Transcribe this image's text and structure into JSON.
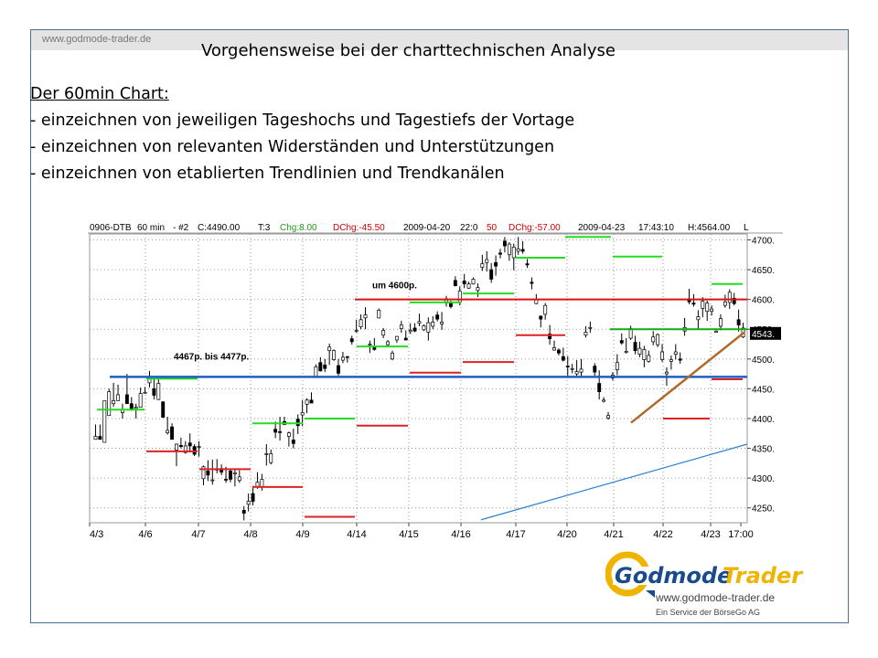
{
  "site_url": "www.godmode-trader.de",
  "slide_title": "Vorgehensweise bei der charttechnischen Analyse",
  "chart_heading": "Der 60min Chart:",
  "bullets": [
    "- einzeichnen von jeweiligen Tageshochs und Tagestiefs der Vortage",
    "- einzeichnen von relevanten Widerständen und Unterstützungen",
    "- einzeichnen von etablierten Trendlinien und  Trendkanälen"
  ],
  "chart_data": {
    "type": "candlestick",
    "header": {
      "symbol": "0906-DTB",
      "interval": "60 min",
      "num": "- #2",
      "close": "C:4490.00",
      "t": "T:3",
      "chg": "Chg:8.00",
      "dchg": "DChg:-45.50",
      "date1": "2009-04-20",
      "time1": "22:0",
      "dchg2_prefix": "50",
      "dchg2": "DChg:-57.00",
      "date2": "2009-04-23",
      "time2": "17:43:10",
      "high": "H:4564.00",
      "tail": "L"
    },
    "y_ticks": [
      "4700.",
      "4650.",
      "4600.",
      "4550.",
      "4500.",
      "4450.",
      "4400.",
      "4350.",
      "4300.",
      "4250."
    ],
    "y_range": [
      4225,
      4710
    ],
    "x_ticks": [
      "4/3",
      "4/6",
      "4/7",
      "4/8",
      "4/9",
      "4/14",
      "4/15",
      "4/16",
      "4/17",
      "4/20",
      "4/21",
      "4/22",
      "4/23",
      "17:00"
    ],
    "last_price_label": "4543.",
    "annotations": [
      {
        "text": "um 4600p.",
        "price": 4600
      },
      {
        "text": "4467p. bis 4477p.",
        "price": 4472
      }
    ],
    "candles": [
      [
        4365,
        4365,
        4390,
        4370
      ],
      [
        4370,
        4370,
        4390,
        4365
      ],
      [
        4360,
        4365,
        4400,
        4430
      ],
      [
        4405,
        4425,
        4450,
        4445
      ],
      [
        4425,
        4420,
        4460,
        4430
      ],
      [
        4430,
        4435,
        4457,
        4440
      ],
      [
        4410,
        4400,
        4425,
        4415
      ],
      [
        4440,
        4440,
        4475,
        4425
      ],
      [
        4425,
        4413,
        4436,
        4415
      ],
      [
        4417,
        4400,
        4425,
        4419
      ],
      [
        4419,
        4419,
        4452,
        4442
      ],
      [
        4443,
        4443,
        4453,
        4444
      ],
      [
        4460,
        4452,
        4480,
        4468
      ],
      [
        4450,
        4432,
        4470,
        4439
      ],
      [
        4432,
        4431,
        4469,
        4459
      ],
      [
        4428,
        4402,
        4429,
        4402
      ],
      [
        4376,
        4373,
        4403,
        4380
      ],
      [
        4386,
        4365,
        4392,
        4365
      ],
      [
        4347,
        4320,
        4358,
        4357
      ],
      [
        4355,
        4350,
        4368,
        4353
      ],
      [
        4343,
        4341,
        4362,
        4354
      ],
      [
        4359,
        4343,
        4375,
        4354
      ],
      [
        4353,
        4337,
        4357,
        4340
      ],
      [
        4352,
        4336,
        4362,
        4353
      ],
      [
        4299,
        4288,
        4321,
        4319
      ],
      [
        4312,
        4295,
        4330,
        4305
      ],
      [
        4297,
        4289,
        4331,
        4297
      ],
      [
        4314,
        4308,
        4332,
        4315
      ],
      [
        4316,
        4305,
        4323,
        4310
      ],
      [
        4298,
        4292,
        4319,
        4297
      ],
      [
        4312,
        4293,
        4314,
        4298
      ],
      [
        4307,
        4286,
        4314,
        4309
      ],
      [
        4296,
        4292,
        4313,
        4302
      ],
      [
        4246,
        4229,
        4253,
        4241
      ],
      [
        4256,
        4244,
        4274,
        4261
      ],
      [
        4274,
        4254,
        4287,
        4261
      ],
      [
        4286,
        4282,
        4310,
        4293
      ],
      [
        4285,
        4279,
        4307,
        4298
      ],
      [
        4340,
        4321,
        4357,
        4341
      ],
      [
        4326,
        4323,
        4348,
        4341
      ],
      [
        4382,
        4367,
        4395,
        4377
      ],
      [
        4378,
        4363,
        4403,
        4377
      ],
      [
        4395,
        4389,
        4403,
        4390
      ],
      [
        4370,
        4353,
        4378,
        4376
      ],
      [
        4364,
        4350,
        4383,
        4358
      ],
      [
        4399,
        4374,
        4407,
        4388
      ],
      [
        4406,
        4387,
        4431,
        4410
      ],
      [
        4424,
        4409,
        4434,
        4431
      ],
      [
        4431,
        4426,
        4444,
        4426
      ],
      [
        4470,
        4468,
        4491,
        4487
      ],
      [
        4494,
        4479,
        4503,
        4480
      ],
      [
        4490,
        4478,
        4500,
        4484
      ],
      [
        4514,
        4490,
        4526,
        4520
      ],
      [
        4499,
        4497,
        4516,
        4514
      ],
      [
        4489,
        4472,
        4500,
        4476
      ],
      [
        4498,
        4493,
        4512,
        4503
      ],
      [
        4504,
        4494,
        4505,
        4503
      ],
      [
        4534,
        4524,
        4539,
        4529
      ],
      [
        4548,
        4544,
        4566,
        4548
      ],
      [
        4554,
        4550,
        4575,
        4566
      ],
      [
        4569,
        4550,
        4587,
        4574
      ],
      [
        4525,
        4510,
        4531,
        4525
      ],
      [
        4519,
        4514,
        4535,
        4516
      ],
      [
        4569,
        4568,
        4585,
        4582
      ],
      [
        4540,
        4535,
        4552,
        4548
      ],
      [
        4524,
        4520,
        4532,
        4529
      ],
      [
        4500,
        4498,
        4514,
        4510
      ],
      [
        4532,
        4527,
        4538,
        4538
      ],
      [
        4551,
        4544,
        4564,
        4557
      ],
      [
        4535,
        4531,
        4548,
        4532
      ],
      [
        4546,
        4542,
        4560,
        4548
      ],
      [
        4552,
        4545,
        4560,
        4547
      ],
      [
        4560,
        4555,
        4576,
        4563
      ],
      [
        4549,
        4547,
        4558,
        4556
      ],
      [
        4545,
        4531,
        4570,
        4561
      ],
      [
        4555,
        4550,
        4572,
        4562
      ],
      [
        4574,
        4563,
        4580,
        4567
      ],
      [
        4559,
        4549,
        4579,
        4562
      ],
      [
        4594,
        4588,
        4606,
        4601
      ],
      [
        4595,
        4585,
        4598,
        4588
      ],
      [
        4632,
        4622,
        4639,
        4623
      ],
      [
        4596,
        4590,
        4622,
        4614
      ],
      [
        4631,
        4619,
        4643,
        4626
      ],
      [
        4619,
        4618,
        4630,
        4626
      ],
      [
        4626,
        4625,
        4637,
        4634
      ],
      [
        4615,
        4604,
        4627,
        4620
      ],
      [
        4654,
        4648,
        4675,
        4660
      ],
      [
        4662,
        4647,
        4681,
        4667
      ],
      [
        4650,
        4628,
        4661,
        4634
      ],
      [
        4662,
        4640,
        4674,
        4656
      ],
      [
        4678,
        4669,
        4685,
        4676
      ],
      [
        4698,
        4679,
        4705,
        4690
      ],
      [
        4675,
        4665,
        4696,
        4693
      ],
      [
        4670,
        4649,
        4694,
        4688
      ],
      [
        4681,
        4675,
        4705,
        4685
      ],
      [
        4684,
        4677,
        4698,
        4681
      ],
      [
        4660,
        4653,
        4668,
        4658
      ],
      [
        4629,
        4617,
        4637,
        4627
      ],
      [
        4593,
        4592,
        4609,
        4600
      ],
      [
        4572,
        4553,
        4573,
        4567
      ],
      [
        4575,
        4566,
        4594,
        4590
      ],
      [
        4542,
        4524,
        4557,
        4534
      ],
      [
        4515,
        4514,
        4531,
        4519
      ],
      [
        4515,
        4506,
        4518,
        4510
      ],
      [
        4504,
        4496,
        4519,
        4498
      ],
      [
        4488,
        4468,
        4505,
        4487
      ],
      [
        4483,
        4476,
        4492,
        4484
      ],
      [
        4475,
        4472,
        4498,
        4479
      ],
      [
        4478,
        4471,
        4500,
        4483
      ],
      [
        4540,
        4536,
        4555,
        4545
      ],
      [
        4553,
        4544,
        4563,
        4553
      ],
      [
        4488,
        4469,
        4493,
        4478
      ],
      [
        4459,
        4432,
        4481,
        4445
      ],
      [
        4429,
        4427,
        4436,
        4431
      ],
      [
        4401,
        4398,
        4411,
        4405
      ],
      [
        4468,
        4464,
        4478,
        4473
      ],
      [
        4482,
        4473,
        4508,
        4494
      ],
      [
        4531,
        4524,
        4543,
        4527
      ],
      [
        4511,
        4509,
        4535,
        4513
      ],
      [
        4535,
        4532,
        4556,
        4551
      ],
      [
        4528,
        4508,
        4539,
        4514
      ],
      [
        4508,
        4503,
        4529,
        4518
      ],
      [
        4499,
        4486,
        4522,
        4516
      ],
      [
        4496,
        4494,
        4514,
        4506
      ],
      [
        4529,
        4523,
        4547,
        4537
      ],
      [
        4524,
        4520,
        4543,
        4541
      ],
      [
        4499,
        4495,
        4525,
        4512
      ],
      [
        4475,
        4455,
        4486,
        4478
      ],
      [
        4496,
        4482,
        4506,
        4499
      ],
      [
        4508,
        4499,
        4525,
        4512
      ],
      [
        4500,
        4492,
        4511,
        4498
      ],
      [
        4547,
        4539,
        4569,
        4553
      ],
      [
        4601,
        4592,
        4618,
        4596
      ],
      [
        4594,
        4588,
        4609,
        4592
      ],
      [
        4566,
        4551,
        4582,
        4571
      ],
      [
        4585,
        4570,
        4604,
        4597
      ],
      [
        4580,
        4564,
        4598,
        4594
      ],
      [
        4580,
        4573,
        4590,
        4584
      ],
      [
        4545,
        4544,
        4548,
        4547
      ],
      [
        4555,
        4548,
        4575,
        4568
      ],
      [
        4590,
        4586,
        4608,
        4596
      ],
      [
        4595,
        4584,
        4617,
        4612
      ],
      [
        4602,
        4590,
        4611,
        4593
      ],
      [
        4566,
        4546,
        4583,
        4557
      ],
      [
        4537,
        4535,
        4561,
        4552
      ]
    ]
  }
}
